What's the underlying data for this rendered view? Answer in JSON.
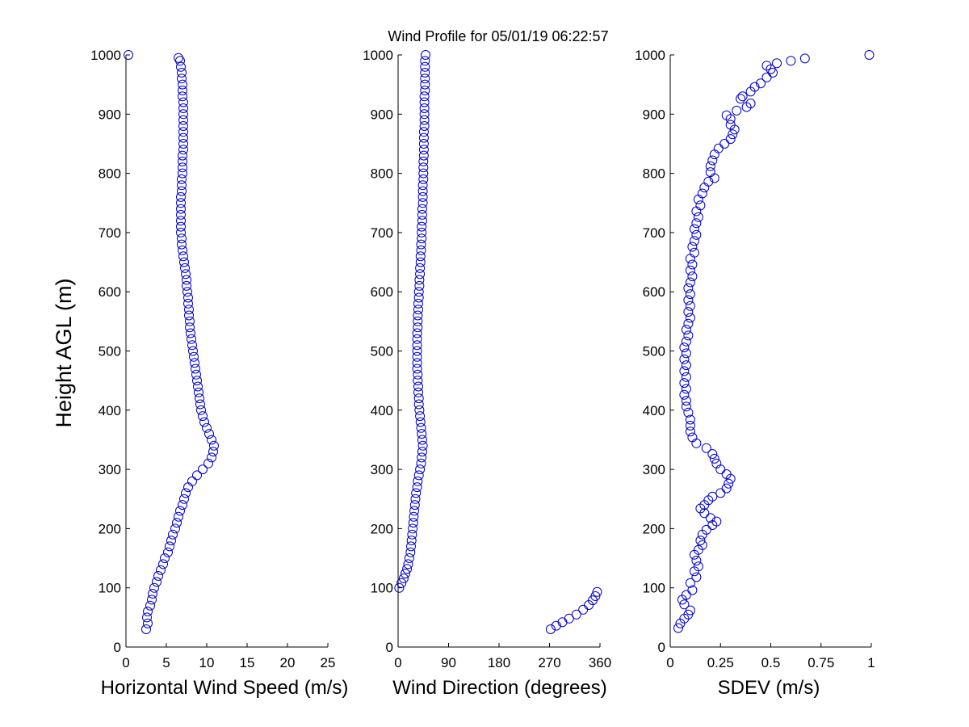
{
  "figure": {
    "title": "Wind Profile for  05/01/19 06:22:57",
    "ylabel": "Height AGL (m)",
    "marker_color": "#0000cc"
  },
  "chart_data": [
    {
      "type": "scatter",
      "xlabel": "Horizontal Wind Speed (m/s)",
      "ylabel": "Height AGL (m)",
      "xlim": [
        0,
        25
      ],
      "ylim": [
        0,
        1000
      ],
      "xticks": [
        "0",
        "5",
        "10",
        "15",
        "20",
        "25"
      ],
      "yticks": [
        "0",
        "100",
        "200",
        "300",
        "400",
        "500",
        "600",
        "700",
        "800",
        "900",
        "1000"
      ],
      "grid": false,
      "marker": "open-circle",
      "points": [
        [
          2.5,
          30
        ],
        [
          2.7,
          40
        ],
        [
          2.6,
          50
        ],
        [
          2.7,
          60
        ],
        [
          3.0,
          70
        ],
        [
          3.2,
          80
        ],
        [
          3.3,
          90
        ],
        [
          3.5,
          100
        ],
        [
          3.8,
          110
        ],
        [
          4.0,
          120
        ],
        [
          4.3,
          130
        ],
        [
          4.6,
          140
        ],
        [
          4.8,
          150
        ],
        [
          5.2,
          160
        ],
        [
          5.4,
          170
        ],
        [
          5.6,
          180
        ],
        [
          5.8,
          190
        ],
        [
          6.1,
          200
        ],
        [
          6.3,
          210
        ],
        [
          6.5,
          220
        ],
        [
          6.7,
          230
        ],
        [
          7.0,
          240
        ],
        [
          7.2,
          250
        ],
        [
          7.4,
          260
        ],
        [
          7.7,
          270
        ],
        [
          8.2,
          280
        ],
        [
          8.8,
          290
        ],
        [
          9.5,
          300
        ],
        [
          10.2,
          310
        ],
        [
          10.6,
          320
        ],
        [
          10.8,
          330
        ],
        [
          10.9,
          340
        ],
        [
          10.6,
          350
        ],
        [
          10.3,
          360
        ],
        [
          10.0,
          370
        ],
        [
          9.7,
          380
        ],
        [
          9.5,
          390
        ],
        [
          9.3,
          400
        ],
        [
          9.2,
          410
        ],
        [
          9.1,
          420
        ],
        [
          9.0,
          430
        ],
        [
          8.9,
          440
        ],
        [
          8.8,
          450
        ],
        [
          8.7,
          460
        ],
        [
          8.6,
          470
        ],
        [
          8.5,
          480
        ],
        [
          8.4,
          490
        ],
        [
          8.3,
          500
        ],
        [
          8.2,
          510
        ],
        [
          8.1,
          520
        ],
        [
          8.0,
          530
        ],
        [
          7.9,
          540
        ],
        [
          7.9,
          550
        ],
        [
          7.8,
          560
        ],
        [
          7.8,
          570
        ],
        [
          7.7,
          580
        ],
        [
          7.7,
          590
        ],
        [
          7.6,
          600
        ],
        [
          7.5,
          610
        ],
        [
          7.5,
          620
        ],
        [
          7.4,
          630
        ],
        [
          7.3,
          640
        ],
        [
          7.2,
          650
        ],
        [
          7.1,
          660
        ],
        [
          7.0,
          670
        ],
        [
          6.9,
          680
        ],
        [
          6.9,
          690
        ],
        [
          6.8,
          700
        ],
        [
          6.8,
          710
        ],
        [
          6.8,
          720
        ],
        [
          6.8,
          730
        ],
        [
          6.8,
          740
        ],
        [
          6.8,
          750
        ],
        [
          6.8,
          760
        ],
        [
          6.9,
          770
        ],
        [
          6.9,
          780
        ],
        [
          6.9,
          790
        ],
        [
          7.0,
          800
        ],
        [
          7.0,
          810
        ],
        [
          7.0,
          820
        ],
        [
          7.0,
          830
        ],
        [
          7.1,
          840
        ],
        [
          7.1,
          850
        ],
        [
          7.1,
          860
        ],
        [
          7.1,
          870
        ],
        [
          7.1,
          880
        ],
        [
          7.1,
          890
        ],
        [
          7.1,
          900
        ],
        [
          7.1,
          910
        ],
        [
          7.1,
          920
        ],
        [
          7.0,
          930
        ],
        [
          7.0,
          940
        ],
        [
          7.0,
          950
        ],
        [
          6.9,
          960
        ],
        [
          6.9,
          970
        ],
        [
          6.8,
          980
        ],
        [
          6.7,
          990
        ],
        [
          6.5,
          995
        ],
        [
          0.3,
          1000
        ]
      ]
    },
    {
      "type": "scatter",
      "xlabel": "Wind Direction (degrees)",
      "ylabel": "",
      "xlim": [
        0,
        360
      ],
      "ylim": [
        0,
        1000
      ],
      "xticks": [
        "0",
        "90",
        "180",
        "270",
        "360"
      ],
      "yticks": [
        "0",
        "100",
        "200",
        "300",
        "400",
        "500",
        "600",
        "700",
        "800",
        "900",
        "1000"
      ],
      "grid": false,
      "marker": "open-circle",
      "points": [
        [
          272,
          30
        ],
        [
          282,
          36
        ],
        [
          293,
          42
        ],
        [
          305,
          48
        ],
        [
          318,
          55
        ],
        [
          330,
          63
        ],
        [
          340,
          71
        ],
        [
          347,
          79
        ],
        [
          352,
          86
        ],
        [
          355,
          93
        ],
        [
          2,
          100
        ],
        [
          6,
          108
        ],
        [
          10,
          116
        ],
        [
          13,
          124
        ],
        [
          16,
          132
        ],
        [
          18,
          140
        ],
        [
          20,
          150
        ],
        [
          22,
          160
        ],
        [
          23,
          170
        ],
        [
          24,
          180
        ],
        [
          25,
          190
        ],
        [
          26,
          200
        ],
        [
          27,
          210
        ],
        [
          28,
          220
        ],
        [
          29,
          230
        ],
        [
          30,
          240
        ],
        [
          31,
          250
        ],
        [
          32,
          260
        ],
        [
          34,
          270
        ],
        [
          35,
          280
        ],
        [
          37,
          290
        ],
        [
          39,
          300
        ],
        [
          41,
          310
        ],
        [
          42,
          320
        ],
        [
          43,
          330
        ],
        [
          44,
          340
        ],
        [
          43,
          350
        ],
        [
          42,
          360
        ],
        [
          41,
          370
        ],
        [
          40,
          380
        ],
        [
          39,
          390
        ],
        [
          38,
          400
        ],
        [
          37,
          410
        ],
        [
          37,
          420
        ],
        [
          36,
          430
        ],
        [
          36,
          440
        ],
        [
          35,
          450
        ],
        [
          35,
          460
        ],
        [
          34,
          470
        ],
        [
          34,
          480
        ],
        [
          34,
          490
        ],
        [
          34,
          500
        ],
        [
          34,
          510
        ],
        [
          34,
          520
        ],
        [
          34,
          530
        ],
        [
          35,
          540
        ],
        [
          35,
          550
        ],
        [
          35,
          560
        ],
        [
          36,
          570
        ],
        [
          36,
          580
        ],
        [
          37,
          590
        ],
        [
          37,
          600
        ],
        [
          38,
          610
        ],
        [
          38,
          620
        ],
        [
          39,
          630
        ],
        [
          39,
          640
        ],
        [
          40,
          650
        ],
        [
          40,
          660
        ],
        [
          41,
          670
        ],
        [
          41,
          680
        ],
        [
          42,
          690
        ],
        [
          42,
          700
        ],
        [
          42,
          710
        ],
        [
          43,
          720
        ],
        [
          43,
          730
        ],
        [
          43,
          740
        ],
        [
          44,
          750
        ],
        [
          44,
          760
        ],
        [
          44,
          770
        ],
        [
          44,
          780
        ],
        [
          45,
          790
        ],
        [
          45,
          800
        ],
        [
          45,
          810
        ],
        [
          45,
          820
        ],
        [
          46,
          830
        ],
        [
          46,
          840
        ],
        [
          46,
          850
        ],
        [
          46,
          860
        ],
        [
          46,
          870
        ],
        [
          47,
          880
        ],
        [
          47,
          890
        ],
        [
          47,
          900
        ],
        [
          47,
          910
        ],
        [
          47,
          920
        ],
        [
          47,
          930
        ],
        [
          48,
          940
        ],
        [
          48,
          950
        ],
        [
          48,
          960
        ],
        [
          48,
          970
        ],
        [
          48,
          980
        ],
        [
          48,
          990
        ],
        [
          49,
          1000
        ]
      ]
    },
    {
      "type": "scatter",
      "xlabel": "SDEV  (m/s)",
      "ylabel": "",
      "xlim": [
        0,
        1
      ],
      "ylim": [
        0,
        1000
      ],
      "xticks": [
        "0",
        "0.25",
        "0.5",
        "0.75",
        "1"
      ],
      "yticks": [
        "0",
        "100",
        "200",
        "300",
        "400",
        "500",
        "600",
        "700",
        "800",
        "900",
        "1000"
      ],
      "grid": false,
      "marker": "open-circle",
      "points": [
        [
          0.04,
          32
        ],
        [
          0.05,
          40
        ],
        [
          0.07,
          48
        ],
        [
          0.09,
          55
        ],
        [
          0.1,
          62
        ],
        [
          0.07,
          72
        ],
        [
          0.06,
          80
        ],
        [
          0.08,
          88
        ],
        [
          0.11,
          96
        ],
        [
          0.1,
          108
        ],
        [
          0.13,
          118
        ],
        [
          0.12,
          128
        ],
        [
          0.14,
          136
        ],
        [
          0.13,
          146
        ],
        [
          0.12,
          156
        ],
        [
          0.14,
          164
        ],
        [
          0.16,
          172
        ],
        [
          0.15,
          180
        ],
        [
          0.16,
          190
        ],
        [
          0.18,
          198
        ],
        [
          0.21,
          206
        ],
        [
          0.23,
          212
        ],
        [
          0.2,
          218
        ],
        [
          0.17,
          226
        ],
        [
          0.15,
          234
        ],
        [
          0.17,
          240
        ],
        [
          0.19,
          248
        ],
        [
          0.21,
          254
        ],
        [
          0.25,
          260
        ],
        [
          0.28,
          268
        ],
        [
          0.29,
          276
        ],
        [
          0.3,
          284
        ],
        [
          0.28,
          292
        ],
        [
          0.25,
          300
        ],
        [
          0.23,
          310
        ],
        [
          0.22,
          318
        ],
        [
          0.21,
          326
        ],
        [
          0.18,
          336
        ],
        [
          0.13,
          344
        ],
        [
          0.11,
          354
        ],
        [
          0.1,
          364
        ],
        [
          0.1,
          374
        ],
        [
          0.1,
          384
        ],
        [
          0.09,
          396
        ],
        [
          0.08,
          406
        ],
        [
          0.08,
          416
        ],
        [
          0.07,
          426
        ],
        [
          0.08,
          436
        ],
        [
          0.07,
          446
        ],
        [
          0.08,
          456
        ],
        [
          0.07,
          466
        ],
        [
          0.08,
          476
        ],
        [
          0.07,
          486
        ],
        [
          0.08,
          496
        ],
        [
          0.07,
          506
        ],
        [
          0.08,
          516
        ],
        [
          0.09,
          526
        ],
        [
          0.08,
          536
        ],
        [
          0.09,
          546
        ],
        [
          0.1,
          556
        ],
        [
          0.09,
          566
        ],
        [
          0.1,
          576
        ],
        [
          0.09,
          586
        ],
        [
          0.1,
          596
        ],
        [
          0.09,
          606
        ],
        [
          0.1,
          616
        ],
        [
          0.11,
          626
        ],
        [
          0.1,
          636
        ],
        [
          0.11,
          646
        ],
        [
          0.1,
          656
        ],
        [
          0.12,
          666
        ],
        [
          0.11,
          676
        ],
        [
          0.12,
          686
        ],
        [
          0.13,
          696
        ],
        [
          0.12,
          706
        ],
        [
          0.13,
          716
        ],
        [
          0.14,
          726
        ],
        [
          0.13,
          736
        ],
        [
          0.15,
          746
        ],
        [
          0.14,
          756
        ],
        [
          0.16,
          766
        ],
        [
          0.17,
          776
        ],
        [
          0.19,
          786
        ],
        [
          0.22,
          792
        ],
        [
          0.2,
          802
        ],
        [
          0.2,
          812
        ],
        [
          0.21,
          822
        ],
        [
          0.22,
          832
        ],
        [
          0.24,
          842
        ],
        [
          0.27,
          850
        ],
        [
          0.3,
          858
        ],
        [
          0.31,
          866
        ],
        [
          0.32,
          874
        ],
        [
          0.3,
          882
        ],
        [
          0.3,
          892
        ],
        [
          0.28,
          898
        ],
        [
          0.33,
          906
        ],
        [
          0.38,
          912
        ],
        [
          0.4,
          918
        ],
        [
          0.35,
          926
        ],
        [
          0.36,
          930
        ],
        [
          0.4,
          938
        ],
        [
          0.42,
          946
        ],
        [
          0.45,
          952
        ],
        [
          0.48,
          962
        ],
        [
          0.51,
          970
        ],
        [
          0.5,
          976
        ],
        [
          0.48,
          982
        ],
        [
          0.53,
          986
        ],
        [
          0.6,
          990
        ],
        [
          0.67,
          994
        ],
        [
          0.99,
          1000
        ]
      ]
    }
  ]
}
